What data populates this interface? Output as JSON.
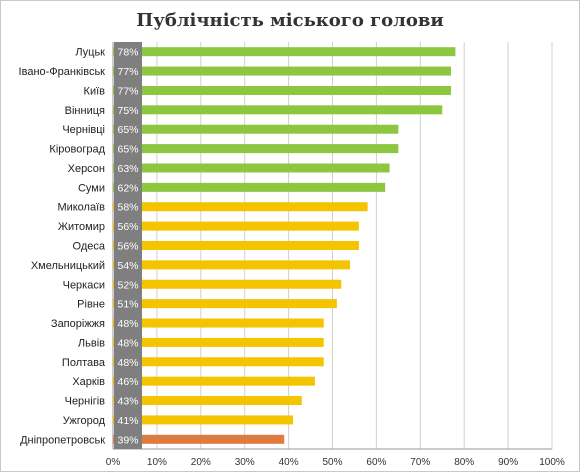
{
  "chart_data": {
    "type": "bar",
    "orientation": "horizontal",
    "title": "Публічність міського голови",
    "categories": [
      "Луцьк",
      "Івано-Франківськ",
      "Київ",
      "Вінниця",
      "Чернівці",
      "Кіровоград",
      "Херсон",
      "Суми",
      "Миколаїв",
      "Житомир",
      "Одеса",
      "Хмельницький",
      "Черкаси",
      "Рівне",
      "Запоріжжя",
      "Львів",
      "Полтава",
      "Харків",
      "Чернігів",
      "Ужгород",
      "Дніпропетровськ"
    ],
    "values": [
      78,
      77,
      77,
      75,
      65,
      65,
      63,
      62,
      58,
      56,
      56,
      54,
      52,
      51,
      48,
      48,
      48,
      46,
      43,
      41,
      39
    ],
    "value_labels": [
      "78%",
      "77%",
      "77%",
      "75%",
      "65%",
      "65%",
      "63%",
      "62%",
      "58%",
      "56%",
      "56%",
      "54%",
      "52%",
      "51%",
      "48%",
      "48%",
      "48%",
      "46%",
      "43%",
      "41%",
      "39%"
    ],
    "bar_colors": [
      "#8dc63f",
      "#8dc63f",
      "#8dc63f",
      "#8dc63f",
      "#8dc63f",
      "#8dc63f",
      "#8dc63f",
      "#8dc63f",
      "#f5c400",
      "#f5c400",
      "#f5c400",
      "#f5c400",
      "#f5c400",
      "#f5c400",
      "#f5c400",
      "#f5c400",
      "#f5c400",
      "#f5c400",
      "#f5c400",
      "#f5c400",
      "#e07a3f"
    ],
    "label_box_color": "#7f7f7f",
    "xlim": [
      0,
      100
    ],
    "x_ticks": [
      "0%",
      "10%",
      "20%",
      "30%",
      "40%",
      "50%",
      "60%",
      "70%",
      "80%",
      "90%",
      "100%"
    ],
    "grid": "vertical",
    "legend": "none"
  }
}
